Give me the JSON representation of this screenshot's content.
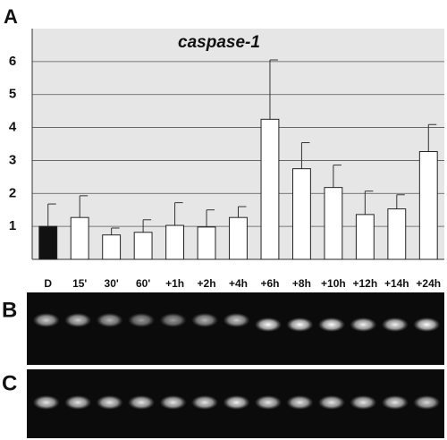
{
  "panel_labels": [
    "A",
    "B",
    "C"
  ],
  "chart_data": {
    "type": "bar",
    "title": "caspase-1",
    "categories": [
      "D",
      "15'",
      "30'",
      "60'",
      "+1h",
      "+2h",
      "+4h",
      "+6h",
      "+8h",
      "+10h",
      "+12h",
      "+14h",
      "+24h"
    ],
    "values": [
      1.0,
      1.27,
      0.74,
      0.82,
      1.03,
      0.98,
      1.27,
      4.25,
      2.75,
      2.18,
      1.36,
      1.53,
      3.27
    ],
    "errors": [
      0.68,
      0.66,
      0.21,
      0.38,
      0.69,
      0.52,
      0.33,
      1.8,
      0.79,
      0.68,
      0.71,
      0.43,
      0.82
    ],
    "colors": [
      "#111111",
      "#ffffff",
      "#ffffff",
      "#ffffff",
      "#ffffff",
      "#ffffff",
      "#ffffff",
      "#ffffff",
      "#ffffff",
      "#ffffff",
      "#ffffff",
      "#ffffff",
      "#ffffff"
    ],
    "ylim": [
      0,
      7
    ],
    "yticks": [
      1,
      2,
      3,
      4,
      5,
      6
    ],
    "grid": true
  }
}
